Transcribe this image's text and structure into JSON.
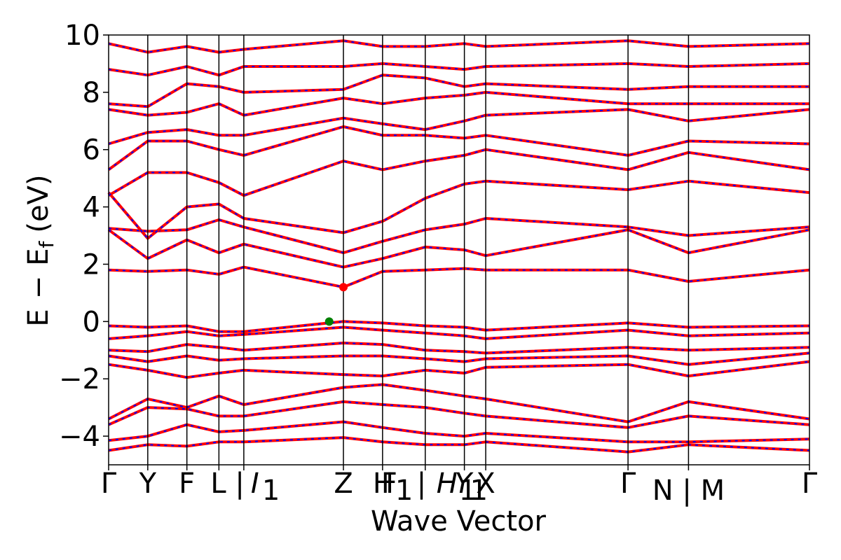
{
  "chart_data": {
    "type": "line",
    "title": "",
    "xlabel": "Wave Vector",
    "ylabel": "E − E_f (eV)",
    "ylabel_parts": {
      "E": "E",
      "minus": "−",
      "Ef_base": "E",
      "Ef_sub": "f",
      "unit": "(eV)"
    },
    "ylim": [
      -5,
      10
    ],
    "yticks": [
      -4,
      -2,
      0,
      2,
      4,
      6,
      8,
      10
    ],
    "ytick_labels": [
      "−4",
      "−2",
      "0",
      "2",
      "4",
      "6",
      "8",
      "10"
    ],
    "xlim": [
      0,
      17.2
    ],
    "kpoints": [
      {
        "x": 0.0,
        "label": "Γ",
        "italic": false
      },
      {
        "x": 0.55,
        "label": "Y",
        "italic": false
      },
      {
        "x": 1.1,
        "label": "F",
        "italic": false
      },
      {
        "x": 1.55,
        "label": "L | I",
        "italic": false
      },
      {
        "x": 1.9,
        "label": "I1",
        "italic": true,
        "base": "I",
        "sub": "1"
      },
      {
        "x": 3.3,
        "label": "Z",
        "italic": false
      },
      {
        "x": 3.85,
        "label": "H | F1",
        "italic": false
      },
      {
        "x": 4.45,
        "label": "H1 | Y1",
        "italic": true
      },
      {
        "x": 5.0,
        "label": "Y",
        "italic": false
      },
      {
        "x": 5.3,
        "label": "X",
        "italic": false
      },
      {
        "x": 7.3,
        "label": "Γ",
        "italic": false
      },
      {
        "x": 8.15,
        "label": "N | M",
        "italic": false
      },
      {
        "x": 9.85,
        "label": "Γ",
        "italic": false
      }
    ],
    "tick_labels_drawn": [
      "Γ",
      "Y",
      "F",
      "L | ",
      "I",
      "1",
      "Z",
      "H",
      "F",
      "1",
      "| ",
      "H",
      "1",
      "Y",
      "1",
      "X",
      "Γ",
      "N | M",
      "Γ"
    ],
    "vbm": {
      "x": 3.1,
      "y": 0.0,
      "color": "#008000"
    },
    "cbm": {
      "x": 3.3,
      "y": 1.2,
      "color": "#ff0000"
    },
    "series": [],
    "bands": [
      {
        "x": [
          0,
          0.55,
          1.1,
          1.55,
          1.9,
          3.3,
          3.85,
          4.45,
          5.0,
          5.3,
          7.3,
          8.15,
          9.85
        ],
        "y": [
          -0.15,
          -0.2,
          -0.15,
          -0.35,
          -0.35,
          0.0,
          -0.05,
          -0.15,
          -0.2,
          -0.3,
          -0.05,
          -0.2,
          -0.15
        ]
      },
      {
        "x": [
          0,
          0.55,
          1.1,
          1.55,
          1.9,
          3.3,
          3.85,
          4.45,
          5.0,
          5.3,
          7.3,
          8.15,
          9.85
        ],
        "y": [
          -0.6,
          -0.5,
          -0.35,
          -0.5,
          -0.45,
          -0.2,
          -0.3,
          -0.4,
          -0.5,
          -0.6,
          -0.3,
          -0.5,
          -0.4
        ]
      },
      {
        "x": [
          0,
          0.55,
          1.1,
          1.55,
          1.9,
          3.3,
          3.85,
          4.45,
          5.0,
          5.3,
          7.3,
          8.15,
          9.85
        ],
        "y": [
          -1.0,
          -1.05,
          -0.8,
          -0.9,
          -1.0,
          -0.75,
          -0.8,
          -1.0,
          -1.05,
          -1.1,
          -0.9,
          -1.0,
          -0.9
        ]
      },
      {
        "x": [
          0,
          0.55,
          1.1,
          1.55,
          1.9,
          3.3,
          3.85,
          4.45,
          5.0,
          5.3,
          7.3,
          8.15,
          9.85
        ],
        "y": [
          -1.2,
          -1.4,
          -1.2,
          -1.35,
          -1.3,
          -1.2,
          -1.2,
          -1.3,
          -1.4,
          -1.3,
          -1.2,
          -1.5,
          -1.1
        ]
      },
      {
        "x": [
          0,
          0.55,
          1.1,
          1.55,
          1.9,
          3.3,
          3.85,
          4.45,
          5.0,
          5.3,
          7.3,
          8.15,
          9.85
        ],
        "y": [
          -1.5,
          -1.7,
          -1.95,
          -1.8,
          -1.7,
          -1.85,
          -1.9,
          -1.7,
          -1.8,
          -1.6,
          -1.5,
          -1.9,
          -1.4
        ]
      },
      {
        "x": [
          0,
          0.55,
          1.1,
          1.55,
          1.9,
          3.3,
          3.85,
          4.45,
          5.0,
          5.3,
          7.3,
          8.15,
          9.85
        ],
        "y": [
          -3.4,
          -2.7,
          -3.0,
          -2.6,
          -2.9,
          -2.3,
          -2.2,
          -2.4,
          -2.6,
          -2.7,
          -3.5,
          -2.8,
          -3.4
        ]
      },
      {
        "x": [
          0,
          0.55,
          1.1,
          1.55,
          1.9,
          3.3,
          3.85,
          4.45,
          5.0,
          5.3,
          7.3,
          8.15,
          9.85
        ],
        "y": [
          -3.6,
          -3.0,
          -3.05,
          -3.3,
          -3.3,
          -2.8,
          -2.9,
          -3.0,
          -3.2,
          -3.3,
          -3.7,
          -3.3,
          -3.6
        ]
      },
      {
        "x": [
          0,
          0.55,
          1.1,
          1.55,
          1.9,
          3.3,
          3.85,
          4.45,
          5.0,
          5.3,
          7.3,
          8.15,
          9.85
        ],
        "y": [
          -4.15,
          -4.0,
          -3.6,
          -3.85,
          -3.8,
          -3.5,
          -3.7,
          -3.9,
          -4.0,
          -3.9,
          -4.2,
          -4.2,
          -4.1
        ]
      },
      {
        "x": [
          0,
          0.55,
          1.1,
          1.55,
          1.9,
          3.3,
          3.85,
          4.45,
          5.0,
          5.3,
          7.3,
          8.15,
          9.85
        ],
        "y": [
          -4.5,
          -4.3,
          -4.35,
          -4.2,
          -4.2,
          -4.05,
          -4.2,
          -4.3,
          -4.3,
          -4.2,
          -4.55,
          -4.3,
          -4.5
        ]
      },
      {
        "x": [
          0,
          0.55,
          1.1,
          1.55,
          1.9,
          3.3,
          3.85,
          4.45,
          5.0,
          5.3,
          7.3,
          8.15,
          9.85
        ],
        "y": [
          1.8,
          1.75,
          1.8,
          1.65,
          1.9,
          1.2,
          1.75,
          1.8,
          1.85,
          1.8,
          1.8,
          1.4,
          1.8
        ]
      },
      {
        "x": [
          0,
          0.55,
          1.1,
          1.55,
          1.9,
          3.3,
          3.85,
          4.45,
          5.0,
          5.3,
          7.3,
          8.15,
          9.85
        ],
        "y": [
          3.2,
          2.2,
          2.85,
          2.4,
          2.7,
          1.9,
          2.2,
          2.6,
          2.5,
          2.3,
          3.2,
          2.4,
          3.2
        ]
      },
      {
        "x": [
          0,
          0.55,
          1.1,
          1.55,
          1.9,
          3.3,
          3.85,
          4.45,
          5.0,
          5.3,
          7.3,
          8.15,
          9.85
        ],
        "y": [
          3.25,
          3.15,
          3.2,
          3.55,
          3.3,
          2.4,
          2.8,
          3.2,
          3.4,
          3.6,
          3.3,
          3.0,
          3.3
        ]
      },
      {
        "x": [
          0,
          0.55,
          1.1,
          1.55,
          1.9,
          3.3,
          3.85,
          4.45,
          5.0,
          5.3,
          7.3,
          8.15,
          9.85
        ],
        "y": [
          4.5,
          2.9,
          4.0,
          4.1,
          3.6,
          3.1,
          3.5,
          4.3,
          4.8,
          4.9,
          4.6,
          4.9,
          4.5
        ]
      },
      {
        "x": [
          0,
          0.55,
          1.1,
          1.55,
          1.9,
          3.3,
          3.85,
          4.45,
          5.0,
          5.3,
          7.3,
          8.15,
          9.85
        ],
        "y": [
          4.4,
          5.2,
          5.2,
          4.85,
          4.4,
          5.6,
          5.3,
          5.6,
          5.8,
          6.0,
          5.3,
          5.9,
          5.3
        ]
      },
      {
        "x": [
          0,
          0.55,
          1.1,
          1.55,
          1.9,
          3.3,
          3.85,
          4.45,
          5.0,
          5.3,
          7.3,
          8.15,
          9.85
        ],
        "y": [
          5.3,
          6.3,
          6.3,
          6.0,
          5.8,
          6.8,
          6.5,
          6.5,
          6.4,
          6.5,
          5.8,
          6.3,
          6.2
        ]
      },
      {
        "x": [
          0,
          0.55,
          1.1,
          1.55,
          1.9,
          3.3,
          3.85,
          4.45,
          5.0,
          5.3,
          7.3,
          8.15,
          9.85
        ],
        "y": [
          6.2,
          6.6,
          6.7,
          6.5,
          6.5,
          7.1,
          6.9,
          6.7,
          7.0,
          7.2,
          7.4,
          7.0,
          7.4
        ]
      },
      {
        "x": [
          0,
          0.55,
          1.1,
          1.55,
          1.9,
          3.3,
          3.85,
          4.45,
          5.0,
          5.3,
          7.3,
          8.15,
          9.85
        ],
        "y": [
          7.4,
          7.2,
          7.3,
          7.6,
          7.2,
          7.8,
          7.6,
          7.8,
          7.9,
          8.0,
          7.6,
          7.6,
          7.6
        ]
      },
      {
        "x": [
          0,
          0.55,
          1.1,
          1.55,
          1.9,
          3.3,
          3.85,
          4.45,
          5.0,
          5.3,
          7.3,
          8.15,
          9.85
        ],
        "y": [
          7.6,
          7.5,
          8.3,
          8.2,
          8.0,
          8.1,
          8.6,
          8.5,
          8.2,
          8.3,
          8.1,
          8.2,
          8.2
        ]
      },
      {
        "x": [
          0,
          0.55,
          1.1,
          1.55,
          1.9,
          3.3,
          3.85,
          4.45,
          5.0,
          5.3,
          7.3,
          8.15,
          9.85
        ],
        "y": [
          8.8,
          8.6,
          8.9,
          8.6,
          8.9,
          8.9,
          9.0,
          8.9,
          8.8,
          8.9,
          9.0,
          8.9,
          9.0
        ]
      },
      {
        "x": [
          0,
          0.55,
          1.1,
          1.55,
          1.9,
          3.3,
          3.85,
          4.45,
          5.0,
          5.3,
          7.3,
          8.15,
          9.85
        ],
        "y": [
          9.7,
          9.4,
          9.6,
          9.4,
          9.5,
          9.8,
          9.6,
          9.6,
          9.7,
          9.6,
          9.8,
          9.6,
          9.7
        ]
      }
    ],
    "line_colors": {
      "outer": "#ff0000",
      "inner": "#0000ff"
    },
    "grid": false,
    "legend": "none"
  }
}
